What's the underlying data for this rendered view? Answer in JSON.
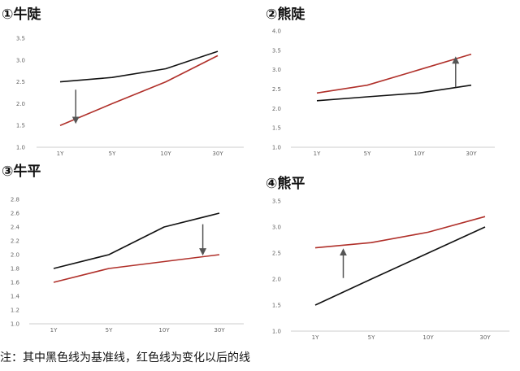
{
  "colors": {
    "base": "#111111",
    "changed": "#b0302a",
    "arrow": "#555555",
    "axis": "#cccccc"
  },
  "note": "注：其中黑色线为基准线，红色线为变化以后的线",
  "chart_data": [
    {
      "type": "line",
      "title": "①牛陡",
      "categories": [
        "1Y",
        "5Y",
        "10Y",
        "30Y"
      ],
      "yticks": [
        "3.5",
        "3.0",
        "2.5",
        "2.0",
        "1.5",
        "1.0"
      ],
      "ylim": [
        1.0,
        3.5
      ],
      "grid": false,
      "series": [
        {
          "color": "#111111",
          "values": [
            2.5,
            2.6,
            2.8,
            3.2
          ]
        },
        {
          "color": "#b0302a",
          "values": [
            1.5,
            2.0,
            2.5,
            3.1
          ]
        }
      ],
      "arrow": {
        "x": 0.3,
        "from": 2.32,
        "to": 1.62
      }
    },
    {
      "type": "line",
      "title": "②熊陡",
      "categories": [
        "1Y",
        "5Y",
        "10Y",
        "30Y"
      ],
      "yticks": [
        "4.0",
        "3.5",
        "3.0",
        "2.5",
        "2.0",
        "1.5",
        "1.0"
      ],
      "ylim": [
        1.0,
        4.0
      ],
      "grid": false,
      "series": [
        {
          "color": "#111111",
          "values": [
            2.2,
            2.3,
            2.4,
            2.6
          ]
        },
        {
          "color": "#b0302a",
          "values": [
            2.4,
            2.6,
            3.0,
            3.4
          ]
        }
      ],
      "arrow": {
        "x": 2.7,
        "from": 2.55,
        "to": 3.25
      }
    },
    {
      "type": "line",
      "title": "③牛平",
      "categories": [
        "1Y",
        "5Y",
        "10Y",
        "30Y"
      ],
      "yticks": [
        "2.8",
        "2.6",
        "2.4",
        "2.2",
        "2.0",
        "1.8",
        "1.6",
        "1.4",
        "1.2",
        "1.0"
      ],
      "ylim": [
        1.0,
        2.8
      ],
      "grid": false,
      "series": [
        {
          "color": "#111111",
          "values": [
            1.8,
            2.0,
            2.4,
            2.6
          ]
        },
        {
          "color": "#b0302a",
          "values": [
            1.6,
            1.8,
            1.9,
            2.0
          ]
        }
      ],
      "arrow": {
        "x": 2.7,
        "from": 2.44,
        "to": 2.04
      }
    },
    {
      "type": "line",
      "title": "④熊平",
      "categories": [
        "1Y",
        "5Y",
        "10Y",
        "30Y"
      ],
      "yticks": [
        "3.5",
        "3.0",
        "2.5",
        "2.0",
        "1.5",
        "1.0"
      ],
      "ylim": [
        1.0,
        3.5
      ],
      "grid": false,
      "series": [
        {
          "color": "#111111",
          "values": [
            1.5,
            2.0,
            2.5,
            3.0
          ]
        },
        {
          "color": "#b0302a",
          "values": [
            2.6,
            2.7,
            2.9,
            3.2
          ]
        }
      ],
      "arrow": {
        "x": 0.5,
        "from": 2.02,
        "to": 2.52
      }
    }
  ]
}
